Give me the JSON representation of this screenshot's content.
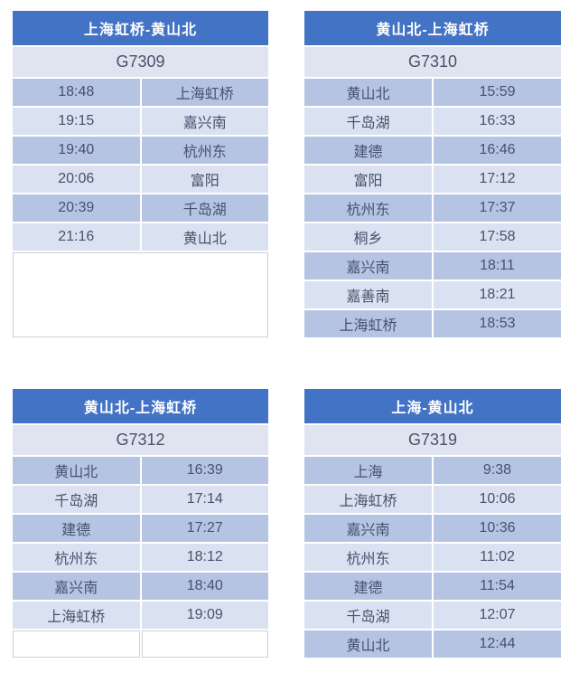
{
  "colors": {
    "header_bg": "#4373C4",
    "header_text": "#FFFFFF",
    "train_row_bg": "#E0E4F1",
    "row_dark": "#B6C4E4",
    "row_light": "#DAE1F0",
    "body_text": "#47516B",
    "empty_border": "#CDD0D8"
  },
  "tables": [
    {
      "route": "上海虹桥-黄山北",
      "train": "G7309",
      "columns": [
        "time",
        "station"
      ],
      "rows": [
        [
          "18:48",
          "上海虹桥"
        ],
        [
          "19:15",
          "嘉兴南"
        ],
        [
          "19:40",
          "杭州东"
        ],
        [
          "20:06",
          "富阳"
        ],
        [
          "20:39",
          "千岛湖"
        ],
        [
          "21:16",
          "黄山北"
        ]
      ],
      "has_empty_extension": true
    },
    {
      "route": "黄山北-上海虹桥",
      "train": "G7310",
      "columns": [
        "station",
        "time"
      ],
      "rows": [
        [
          "黄山北",
          "15:59"
        ],
        [
          "千岛湖",
          "16:33"
        ],
        [
          "建德",
          "16:46"
        ],
        [
          "富阳",
          "17:12"
        ],
        [
          "杭州东",
          "17:37"
        ],
        [
          "桐乡",
          "17:58"
        ],
        [
          "嘉兴南",
          "18:11"
        ],
        [
          "嘉善南",
          "18:21"
        ],
        [
          "上海虹桥",
          "18:53"
        ]
      ]
    },
    {
      "route": "黄山北-上海虹桥",
      "train": "G7312",
      "columns": [
        "station",
        "time"
      ],
      "rows": [
        [
          "黄山北",
          "16:39"
        ],
        [
          "千岛湖",
          "17:14"
        ],
        [
          "建德",
          "17:27"
        ],
        [
          "杭州东",
          "18:12"
        ],
        [
          "嘉兴南",
          "18:40"
        ],
        [
          "上海虹桥",
          "19:09"
        ],
        [
          "",
          ""
        ]
      ]
    },
    {
      "route": "上海-黄山北",
      "train": "G7319",
      "columns": [
        "station",
        "time"
      ],
      "rows": [
        [
          "上海",
          "9:38"
        ],
        [
          "上海虹桥",
          "10:06"
        ],
        [
          "嘉兴南",
          "10:36"
        ],
        [
          "杭州东",
          "11:02"
        ],
        [
          "建德",
          "11:54"
        ],
        [
          "千岛湖",
          "12:07"
        ],
        [
          "黄山北",
          "12:44"
        ]
      ]
    }
  ]
}
